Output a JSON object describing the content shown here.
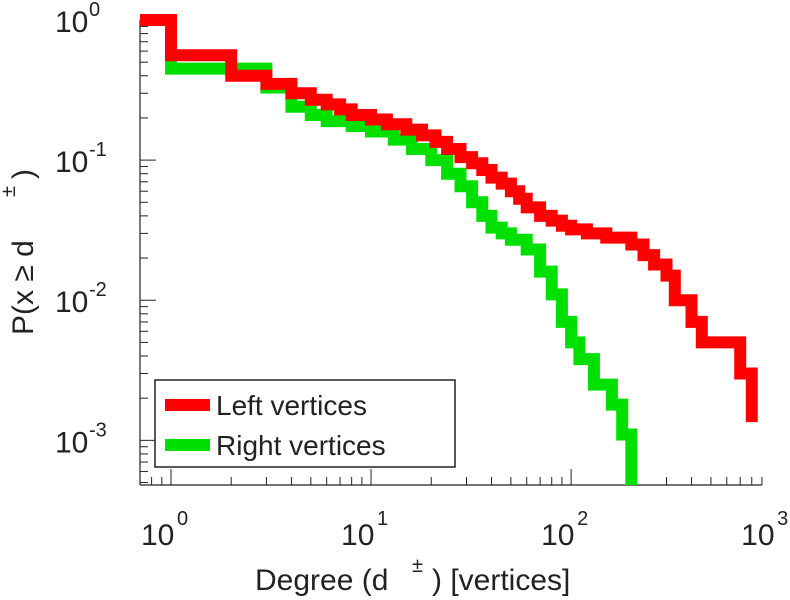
{
  "chart_data": {
    "type": "line",
    "scale": {
      "x": "log",
      "y": "log"
    },
    "xlim": [
      0.7,
      900
    ],
    "ylim": [
      0.00048,
      1.0
    ],
    "xlabel": {
      "main": "Degree (d",
      "sup": "±",
      "rest": ") [vertices]"
    },
    "ylabel": {
      "main": "P(x ≥ d",
      "sup": "±",
      "rest": ")"
    },
    "x_ticks": [
      {
        "value": 1,
        "base": "10",
        "exp": "0"
      },
      {
        "value": 10,
        "base": "10",
        "exp": "1"
      },
      {
        "value": 100,
        "base": "10",
        "exp": "2"
      },
      {
        "value": 1000,
        "base": "10",
        "exp": "3"
      }
    ],
    "y_ticks": [
      {
        "value": 1,
        "base": "10",
        "exp": "0"
      },
      {
        "value": 0.1,
        "base": "10",
        "exp": "-1"
      },
      {
        "value": 0.01,
        "base": "10",
        "exp": "-2"
      },
      {
        "value": 0.001,
        "base": "10",
        "exp": "-3"
      }
    ],
    "legend": {
      "placement": "bottom-left"
    },
    "series": [
      {
        "name": "Left vertices",
        "color": "#ff0000",
        "x": [
          0.7,
          1,
          1,
          2,
          2,
          3,
          3,
          4,
          4,
          5,
          5,
          6,
          6,
          7,
          7,
          8,
          8,
          10,
          10,
          12,
          12,
          15,
          15,
          18,
          18,
          21,
          21,
          24,
          24,
          28,
          28,
          32,
          32,
          36,
          36,
          40,
          40,
          45,
          45,
          50,
          50,
          55,
          55,
          60,
          60,
          70,
          70,
          80,
          80,
          90,
          90,
          100,
          100,
          120,
          120,
          150,
          150,
          200,
          200,
          230,
          230,
          260,
          260,
          300,
          300,
          330,
          330,
          400,
          400,
          450,
          450,
          700,
          700,
          800,
          800
        ],
        "y": [
          1.0,
          1.0,
          0.56,
          0.56,
          0.4,
          0.4,
          0.35,
          0.35,
          0.3,
          0.3,
          0.27,
          0.27,
          0.25,
          0.25,
          0.23,
          0.23,
          0.21,
          0.21,
          0.195,
          0.195,
          0.18,
          0.18,
          0.165,
          0.165,
          0.15,
          0.15,
          0.135,
          0.135,
          0.12,
          0.12,
          0.105,
          0.105,
          0.095,
          0.095,
          0.085,
          0.085,
          0.075,
          0.075,
          0.068,
          0.068,
          0.06,
          0.06,
          0.053,
          0.053,
          0.046,
          0.046,
          0.04,
          0.04,
          0.037,
          0.037,
          0.034,
          0.034,
          0.032,
          0.032,
          0.03,
          0.03,
          0.028,
          0.028,
          0.025,
          0.025,
          0.021,
          0.021,
          0.018,
          0.018,
          0.015,
          0.015,
          0.01,
          0.01,
          0.007,
          0.007,
          0.005,
          0.005,
          0.003,
          0.003,
          0.00135
        ]
      },
      {
        "name": "Right vertices",
        "color": "#00e000",
        "x": [
          0.7,
          1,
          1,
          3,
          3,
          4,
          4,
          5,
          5,
          6,
          6,
          8,
          8,
          10,
          10,
          13,
          13,
          16,
          16,
          20,
          20,
          24,
          24,
          28,
          28,
          32,
          32,
          36,
          36,
          40,
          40,
          45,
          45,
          50,
          50,
          60,
          60,
          70,
          70,
          80,
          80,
          90,
          90,
          100,
          100,
          110,
          110,
          130,
          130,
          160,
          160,
          180,
          180,
          200,
          200
        ],
        "y": [
          1.0,
          1.0,
          0.45,
          0.45,
          0.33,
          0.33,
          0.24,
          0.24,
          0.21,
          0.21,
          0.19,
          0.19,
          0.175,
          0.175,
          0.16,
          0.16,
          0.14,
          0.14,
          0.12,
          0.12,
          0.1,
          0.1,
          0.08,
          0.08,
          0.065,
          0.065,
          0.05,
          0.05,
          0.04,
          0.04,
          0.033,
          0.033,
          0.03,
          0.03,
          0.027,
          0.027,
          0.023,
          0.023,
          0.016,
          0.016,
          0.011,
          0.011,
          0.007,
          0.007,
          0.005,
          0.005,
          0.0038,
          0.0038,
          0.0025,
          0.0025,
          0.0018,
          0.0018,
          0.0011,
          0.0011,
          0.00048
        ]
      }
    ]
  }
}
